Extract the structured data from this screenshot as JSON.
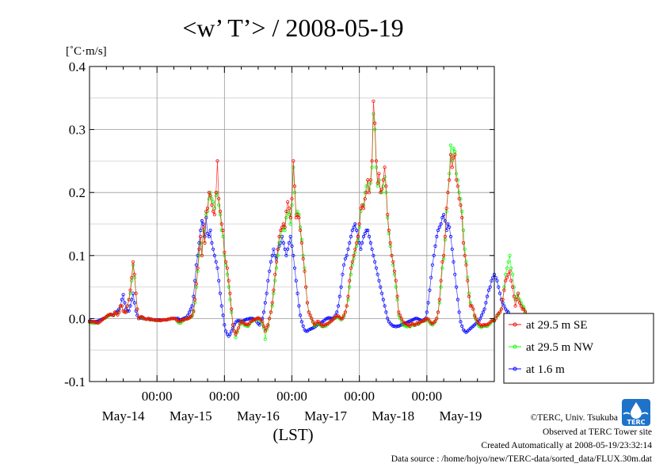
{
  "chart_data": {
    "type": "line",
    "title": "<w’ T’> / 2008-05-19",
    "ylabel": "[˚C·m/s]",
    "xlabel": "(LST)",
    "ylim": [
      -0.1,
      0.4
    ],
    "yticks": [
      -0.1,
      0.0,
      0.1,
      0.2,
      0.3,
      0.4
    ],
    "ytick_labels": [
      "-0.1",
      "0.0",
      "0.1",
      "0.2",
      "0.3",
      "0.4"
    ],
    "xlim_hours": [
      0,
      144
    ],
    "xticks_hours": [
      0,
      24,
      48,
      72,
      96,
      120,
      144
    ],
    "time_labels": [
      "00:00",
      "00:00",
      "00:00",
      "00:00",
      "00:00"
    ],
    "time_label_hours": [
      24,
      48,
      72,
      96,
      120
    ],
    "date_labels": [
      "May-14",
      "May-15",
      "May-16",
      "May-17",
      "May-18",
      "May-19"
    ],
    "date_label_hours": [
      12,
      36,
      60,
      84,
      108,
      132
    ],
    "grid": true,
    "legend_position": "right",
    "interval_hours": 0.5,
    "series": [
      {
        "name": "at 29.5 m SE",
        "color": "#ff0000",
        "x_start_hour": 0,
        "values": [
          -0.005,
          -0.005,
          -0.005,
          -0.005,
          -0.006,
          -0.006,
          -0.007,
          -0.006,
          -0.004,
          -0.002,
          0.0,
          0.001,
          0.003,
          0.005,
          0.006,
          0.007,
          0.006,
          0.005,
          0.01,
          0.008,
          0.006,
          0.01,
          0.02,
          0.02,
          0.012,
          0.01,
          0.01,
          0.02,
          0.03,
          0.045,
          0.065,
          0.09,
          0.07,
          0.04,
          0.015,
          0.0,
          0.002,
          0.003,
          0.002,
          0.0,
          -0.001,
          -0.001,
          0.0,
          -0.002,
          -0.001,
          -0.002,
          -0.002,
          -0.003,
          -0.002,
          -0.003,
          -0.003,
          -0.003,
          -0.002,
          -0.002,
          -0.002,
          -0.002,
          -0.001,
          -0.001,
          0.0,
          0.0,
          0.0,
          0.0,
          -0.002,
          -0.004,
          -0.004,
          -0.004,
          -0.002,
          -0.002,
          -0.001,
          -0.001,
          0.0,
          0.001,
          0.003,
          0.005,
          0.012,
          0.03,
          0.055,
          0.08,
          0.11,
          0.13,
          0.1,
          0.145,
          0.12,
          0.17,
          0.175,
          0.2,
          0.195,
          0.18,
          0.17,
          0.165,
          0.2,
          0.25,
          0.19,
          0.17,
          0.15,
          0.14,
          0.105,
          0.09,
          0.08,
          0.06,
          0.04,
          0.015,
          -0.01,
          -0.02,
          -0.025,
          -0.02,
          -0.015,
          -0.008,
          -0.004,
          -0.006,
          -0.008,
          -0.009,
          -0.009,
          -0.01,
          -0.007,
          -0.004,
          -0.003,
          -0.002,
          -0.001,
          0.0,
          0.001,
          0.0,
          -0.002,
          -0.005,
          -0.012,
          -0.02,
          -0.015,
          -0.01,
          0.0,
          0.01,
          0.025,
          0.045,
          0.07,
          0.09,
          0.11,
          0.13,
          0.14,
          0.145,
          0.15,
          0.145,
          0.17,
          0.185,
          0.175,
          0.16,
          0.19,
          0.25,
          0.21,
          0.16,
          0.165,
          0.16,
          0.14,
          0.12,
          0.095,
          0.075,
          0.05,
          0.025,
          0.01,
          0.005,
          0.0,
          -0.005,
          -0.01,
          -0.008,
          -0.005,
          -0.005,
          -0.008,
          -0.01,
          -0.012,
          -0.01,
          -0.01,
          -0.008,
          -0.008,
          -0.005,
          -0.004,
          -0.002,
          0.0,
          0.002,
          0.004,
          0.004,
          0.002,
          0.0,
          0.0,
          0.005,
          0.01,
          0.02,
          0.035,
          0.06,
          0.08,
          0.09,
          0.1,
          0.11,
          0.12,
          0.13,
          0.15,
          0.175,
          0.18,
          0.175,
          0.19,
          0.2,
          0.22,
          0.2,
          0.22,
          0.25,
          0.345,
          0.31,
          0.25,
          0.215,
          0.23,
          0.2,
          0.205,
          0.22,
          0.24,
          0.21,
          0.165,
          0.14,
          0.12,
          0.1,
          0.09,
          0.075,
          0.06,
          0.035,
          0.01,
          0.005,
          0.0,
          -0.005,
          -0.007,
          -0.008,
          -0.01,
          -0.01,
          -0.012,
          -0.008,
          -0.008,
          -0.01,
          -0.01,
          -0.007,
          -0.008,
          -0.006,
          -0.005,
          -0.004,
          -0.003,
          -0.002,
          0.0,
          -0.001,
          -0.004,
          -0.007,
          -0.008,
          -0.006,
          -0.004,
          0.0,
          0.01,
          0.03,
          0.06,
          0.09,
          0.1,
          0.13,
          0.175,
          0.2,
          0.22,
          0.26,
          0.24,
          0.255,
          0.26,
          0.22,
          0.21,
          0.19,
          0.18,
          0.16,
          0.12,
          0.1,
          0.085,
          0.06,
          0.035,
          0.02,
          0.02,
          0.015,
          0.005,
          0.0,
          -0.005,
          -0.008,
          -0.01,
          -0.012,
          -0.01,
          -0.01,
          -0.01,
          -0.01,
          -0.008,
          -0.006,
          -0.004,
          -0.002,
          -0.003,
          0.0,
          0.005,
          0.008,
          0.01,
          0.015,
          0.03,
          0.045,
          0.06,
          0.065,
          0.07,
          0.075,
          0.06,
          0.05,
          0.035,
          0.02,
          0.03,
          0.04,
          0.025,
          0.02,
          0.015,
          0.015,
          0.01,
          0.005,
          0.0,
          -0.005,
          -0.01,
          -0.02,
          -0.04,
          -0.055
        ]
      },
      {
        "name": "at 29.5 m NW",
        "color": "#00ff00",
        "x_start_hour": 0,
        "values": [
          -0.006,
          -0.006,
          -0.007,
          -0.007,
          -0.007,
          -0.007,
          -0.007,
          -0.006,
          -0.004,
          -0.002,
          0.0,
          0.001,
          0.002,
          0.004,
          0.005,
          0.006,
          0.006,
          0.005,
          0.008,
          0.008,
          0.006,
          0.01,
          0.02,
          0.02,
          0.012,
          0.01,
          0.01,
          0.02,
          0.03,
          0.04,
          0.06,
          0.085,
          0.065,
          0.04,
          0.015,
          0.0,
          0.002,
          0.002,
          0.001,
          0.0,
          -0.001,
          -0.001,
          0.0,
          -0.002,
          -0.002,
          -0.002,
          -0.002,
          -0.003,
          -0.003,
          -0.003,
          -0.003,
          -0.003,
          -0.002,
          -0.002,
          -0.002,
          -0.002,
          -0.001,
          -0.001,
          0.0,
          0.0,
          0.0,
          0.0,
          -0.003,
          -0.006,
          -0.007,
          -0.007,
          -0.004,
          -0.003,
          -0.001,
          0.0,
          0.0,
          0.001,
          0.002,
          0.004,
          0.01,
          0.025,
          0.05,
          0.075,
          0.1,
          0.12,
          0.1,
          0.14,
          0.12,
          0.165,
          0.17,
          0.19,
          0.2,
          0.19,
          0.185,
          0.175,
          0.195,
          0.2,
          0.18,
          0.165,
          0.14,
          0.13,
          0.1,
          0.085,
          0.07,
          0.05,
          0.03,
          0.01,
          -0.01,
          -0.02,
          -0.03,
          -0.022,
          -0.015,
          -0.01,
          -0.006,
          -0.007,
          -0.01,
          -0.011,
          -0.012,
          -0.012,
          -0.008,
          -0.005,
          -0.004,
          -0.002,
          -0.002,
          -0.001,
          0.0,
          -0.002,
          -0.005,
          -0.008,
          -0.015,
          -0.033,
          -0.018,
          -0.012,
          0.0,
          0.01,
          0.02,
          0.04,
          0.06,
          0.08,
          0.1,
          0.12,
          0.13,
          0.14,
          0.145,
          0.14,
          0.16,
          0.17,
          0.165,
          0.15,
          0.18,
          0.24,
          0.2,
          0.165,
          0.17,
          0.165,
          0.145,
          0.125,
          0.1,
          0.08,
          0.05,
          0.025,
          0.01,
          0.005,
          0.0,
          -0.006,
          -0.012,
          -0.01,
          -0.008,
          -0.008,
          -0.01,
          -0.012,
          -0.013,
          -0.012,
          -0.012,
          -0.01,
          -0.008,
          -0.006,
          -0.004,
          -0.002,
          0.0,
          0.001,
          0.002,
          0.002,
          0.0,
          -0.002,
          0.0,
          0.003,
          0.01,
          0.02,
          0.03,
          0.05,
          0.07,
          0.085,
          0.095,
          0.105,
          0.115,
          0.125,
          0.145,
          0.17,
          0.18,
          0.18,
          0.2,
          0.21,
          0.22,
          0.205,
          0.215,
          0.24,
          0.325,
          0.3,
          0.24,
          0.21,
          0.22,
          0.2,
          0.2,
          0.21,
          0.225,
          0.2,
          0.16,
          0.135,
          0.115,
          0.1,
          0.085,
          0.07,
          0.05,
          0.03,
          0.005,
          0.0,
          -0.005,
          -0.01,
          -0.011,
          -0.012,
          -0.013,
          -0.012,
          -0.013,
          -0.01,
          -0.01,
          -0.011,
          -0.01,
          -0.008,
          -0.009,
          -0.007,
          -0.005,
          -0.004,
          -0.004,
          -0.003,
          -0.001,
          -0.003,
          -0.006,
          -0.009,
          -0.01,
          -0.008,
          -0.005,
          0.0,
          0.01,
          0.025,
          0.05,
          0.08,
          0.095,
          0.125,
          0.17,
          0.2,
          0.23,
          0.275,
          0.25,
          0.27,
          0.265,
          0.23,
          0.22,
          0.2,
          0.19,
          0.17,
          0.14,
          0.11,
          0.09,
          0.065,
          0.04,
          0.025,
          0.02,
          0.015,
          0.003,
          -0.002,
          -0.008,
          -0.012,
          -0.013,
          -0.014,
          -0.012,
          -0.012,
          -0.012,
          -0.012,
          -0.01,
          -0.008,
          -0.005,
          -0.003,
          -0.004,
          0.0,
          0.004,
          0.006,
          0.01,
          0.015,
          0.03,
          0.05,
          0.07,
          0.08,
          0.09,
          0.1,
          0.08,
          0.07,
          0.05,
          0.03,
          0.035,
          0.04,
          0.03,
          0.025,
          0.02,
          0.018,
          0.012,
          0.006,
          0.0,
          -0.008,
          -0.015,
          -0.025,
          -0.035,
          -0.045
        ]
      },
      {
        "name": "at 1.6 m",
        "color": "#0000ff",
        "x_start_hour": 0,
        "values": [
          -0.004,
          -0.004,
          -0.005,
          -0.005,
          -0.005,
          -0.005,
          -0.004,
          -0.003,
          -0.002,
          -0.001,
          0.0,
          0.001,
          0.003,
          0.004,
          0.005,
          0.006,
          0.006,
          0.006,
          0.008,
          0.01,
          0.012,
          0.015,
          0.02,
          0.03,
          0.038,
          0.025,
          0.015,
          0.012,
          0.012,
          0.02,
          0.03,
          0.04,
          0.025,
          0.012,
          0.005,
          0.0,
          0.001,
          0.001,
          0.0,
          0.0,
          -0.001,
          -0.001,
          0.0,
          -0.001,
          -0.001,
          -0.002,
          -0.002,
          -0.002,
          -0.002,
          -0.002,
          -0.002,
          -0.003,
          -0.002,
          -0.002,
          -0.002,
          -0.002,
          -0.001,
          -0.001,
          0.0,
          0.0,
          0.0,
          0.0,
          0.0,
          0.0,
          -0.002,
          -0.002,
          -0.001,
          0.0,
          0.001,
          0.002,
          0.005,
          0.01,
          0.015,
          0.02,
          0.035,
          0.06,
          0.085,
          0.1,
          0.12,
          0.14,
          0.155,
          0.15,
          0.13,
          0.16,
          0.135,
          0.13,
          0.14,
          0.12,
          0.11,
          0.1,
          0.09,
          0.08,
          0.06,
          0.04,
          0.02,
          0.005,
          -0.01,
          -0.02,
          -0.025,
          -0.028,
          -0.025,
          -0.02,
          -0.015,
          -0.01,
          -0.006,
          -0.004,
          -0.003,
          -0.004,
          -0.005,
          -0.004,
          -0.003,
          -0.002,
          -0.001,
          -0.001,
          0.0,
          0.0,
          0.0,
          -0.001,
          -0.002,
          -0.005,
          -0.008,
          -0.01,
          -0.005,
          0.0,
          0.01,
          0.025,
          0.04,
          0.06,
          0.075,
          0.09,
          0.1,
          0.11,
          0.1,
          0.095,
          0.11,
          0.115,
          0.12,
          0.13,
          0.12,
          0.11,
          0.1,
          0.11,
          0.12,
          0.13,
          0.115,
          0.1,
          0.08,
          0.06,
          0.04,
          0.02,
          0.005,
          -0.005,
          -0.012,
          -0.018,
          -0.02,
          -0.02,
          -0.018,
          -0.017,
          -0.016,
          -0.015,
          -0.014,
          -0.012,
          -0.01,
          -0.009,
          -0.008,
          -0.006,
          -0.005,
          -0.003,
          -0.001,
          0.0,
          0.001,
          0.001,
          0.0,
          0.0,
          0.002,
          0.005,
          0.01,
          0.02,
          0.035,
          0.05,
          0.07,
          0.085,
          0.095,
          0.1,
          0.11,
          0.12,
          0.13,
          0.14,
          0.145,
          0.15,
          0.14,
          0.13,
          0.12,
          0.11,
          0.12,
          0.13,
          0.135,
          0.14,
          0.14,
          0.13,
          0.12,
          0.11,
          0.1,
          0.09,
          0.08,
          0.07,
          0.06,
          0.05,
          0.04,
          0.03,
          0.02,
          0.01,
          0.0,
          -0.005,
          -0.008,
          -0.01,
          -0.012,
          -0.012,
          -0.013,
          -0.012,
          -0.012,
          -0.011,
          -0.01,
          -0.009,
          -0.008,
          -0.007,
          -0.006,
          -0.005,
          -0.004,
          -0.003,
          -0.002,
          -0.001,
          0.0,
          0.0,
          -0.001,
          -0.002,
          -0.003,
          -0.004,
          -0.002,
          0.0,
          0.01,
          0.025,
          0.045,
          0.065,
          0.085,
          0.1,
          0.115,
          0.13,
          0.14,
          0.145,
          0.15,
          0.16,
          0.165,
          0.155,
          0.14,
          0.15,
          0.145,
          0.13,
          0.11,
          0.09,
          0.07,
          0.05,
          0.03,
          0.01,
          -0.005,
          -0.012,
          -0.018,
          -0.02,
          -0.022,
          -0.02,
          -0.018,
          -0.016,
          -0.014,
          -0.012,
          -0.01,
          -0.008,
          -0.006,
          -0.004,
          0.0,
          0.005,
          0.01,
          0.015,
          0.025,
          0.035,
          0.045,
          0.05,
          0.06,
          0.065,
          0.07,
          0.065,
          0.06,
          0.05,
          0.04,
          0.03,
          0.025,
          0.02,
          0.015,
          0.012,
          0.01,
          0.005,
          0.0,
          -0.005,
          -0.01,
          -0.015,
          -0.02,
          -0.025
        ]
      }
    ]
  },
  "footer": {
    "copyright": "©TERC, Univ. Tsukuba",
    "observed": "Observed at TERC Tower site",
    "created": "Created Automatically at 2008-05-19/23:32:14",
    "source": "Data source : /home/hojyo/new/TERC-data/sorted_data/FLUX.30m.dat",
    "logo_text": "TERC",
    "logo_color": "#1e73c8"
  }
}
